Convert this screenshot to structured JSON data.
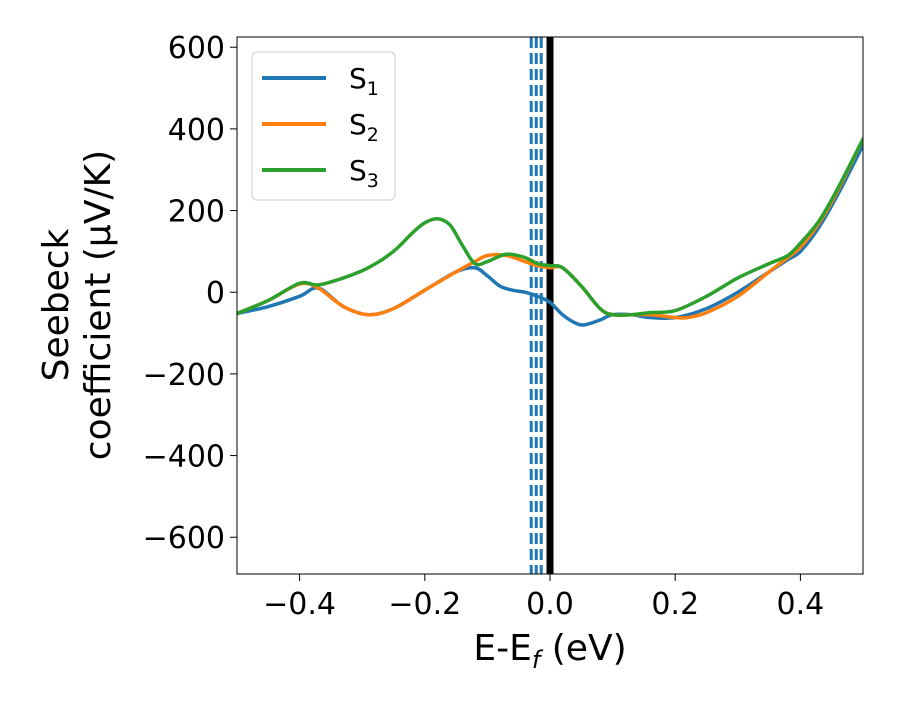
{
  "chart_data": {
    "type": "line",
    "xlabel": "E-E",
    "xlabel_sub": "f",
    "xlabel_unit": " (eV)",
    "ylabel_line1": "Seebeck",
    "ylabel_line2": "coefficient  (μV/K)",
    "xlim": [
      -0.5,
      0.5
    ],
    "ylim": [
      -690,
      625
    ],
    "xticks": [
      -0.4,
      -0.2,
      0.0,
      0.2,
      0.4
    ],
    "xtick_labels": [
      "−0.4",
      "−0.2",
      "0.0",
      "0.2",
      "0.4"
    ],
    "yticks": [
      -600,
      -400,
      -200,
      0,
      200,
      400,
      600
    ],
    "ytick_labels": [
      "−600",
      "−400",
      "−200",
      "0",
      "200",
      "400",
      "600"
    ],
    "legend_position": "top-left",
    "vlines": [
      {
        "x": 0.0,
        "color": "#000000",
        "style": "solid"
      },
      {
        "x": -0.03,
        "color": "#1f77b4",
        "style": "dashed"
      },
      {
        "x": -0.022,
        "color": "#1f77b4",
        "style": "dashed"
      },
      {
        "x": -0.014,
        "color": "#1f77b4",
        "style": "dashed"
      }
    ],
    "series": [
      {
        "name": "S",
        "sub": "1",
        "color": "#1f77b4",
        "x": [
          -0.5,
          -0.45,
          -0.4,
          -0.37,
          -0.33,
          -0.29,
          -0.25,
          -0.2,
          -0.15,
          -0.12,
          -0.1,
          -0.08,
          -0.06,
          -0.04,
          -0.02,
          0.0,
          0.02,
          0.04,
          0.055,
          0.08,
          0.1,
          0.13,
          0.16,
          0.2,
          0.25,
          0.3,
          0.35,
          0.38,
          0.4,
          0.43,
          0.46,
          0.5
        ],
        "y": [
          -52,
          -35,
          -10,
          10,
          -35,
          -55,
          -40,
          5,
          50,
          60,
          40,
          15,
          5,
          0,
          -10,
          -25,
          -55,
          -75,
          -80,
          -68,
          -55,
          -55,
          -62,
          -62,
          -40,
          0,
          50,
          80,
          100,
          160,
          240,
          360
        ]
      },
      {
        "name": "S",
        "sub": "2",
        "color": "#ff7f0e",
        "x": [
          -0.5,
          -0.45,
          -0.4,
          -0.37,
          -0.33,
          -0.29,
          -0.25,
          -0.2,
          -0.15,
          -0.12,
          -0.1,
          -0.07,
          -0.04,
          -0.02,
          0.0,
          0.02,
          0.05,
          0.08,
          0.1,
          0.13,
          0.16,
          0.2,
          0.22,
          0.25,
          0.3,
          0.35,
          0.38,
          0.4,
          0.43,
          0.46,
          0.5
        ],
        "y": [
          -52,
          -20,
          20,
          10,
          -35,
          -55,
          -40,
          5,
          50,
          75,
          90,
          90,
          75,
          65,
          60,
          60,
          15,
          -40,
          -55,
          -55,
          -55,
          -62,
          -62,
          -50,
          -10,
          50,
          85,
          110,
          170,
          250,
          375
        ]
      },
      {
        "name": "S",
        "sub": "3",
        "color": "#2ca02c",
        "x": [
          -0.5,
          -0.45,
          -0.4,
          -0.37,
          -0.33,
          -0.29,
          -0.25,
          -0.22,
          -0.2,
          -0.18,
          -0.16,
          -0.14,
          -0.12,
          -0.1,
          -0.07,
          -0.04,
          -0.02,
          0.0,
          0.02,
          0.05,
          0.08,
          0.1,
          0.13,
          0.16,
          0.2,
          0.25,
          0.3,
          0.35,
          0.38,
          0.4,
          0.43,
          0.46,
          0.5
        ],
        "y": [
          -52,
          -20,
          22,
          18,
          35,
          60,
          100,
          145,
          170,
          180,
          165,
          115,
          70,
          75,
          93,
          85,
          70,
          65,
          60,
          15,
          -40,
          -55,
          -55,
          -50,
          -45,
          -10,
          35,
          70,
          90,
          120,
          175,
          255,
          375
        ]
      }
    ]
  }
}
